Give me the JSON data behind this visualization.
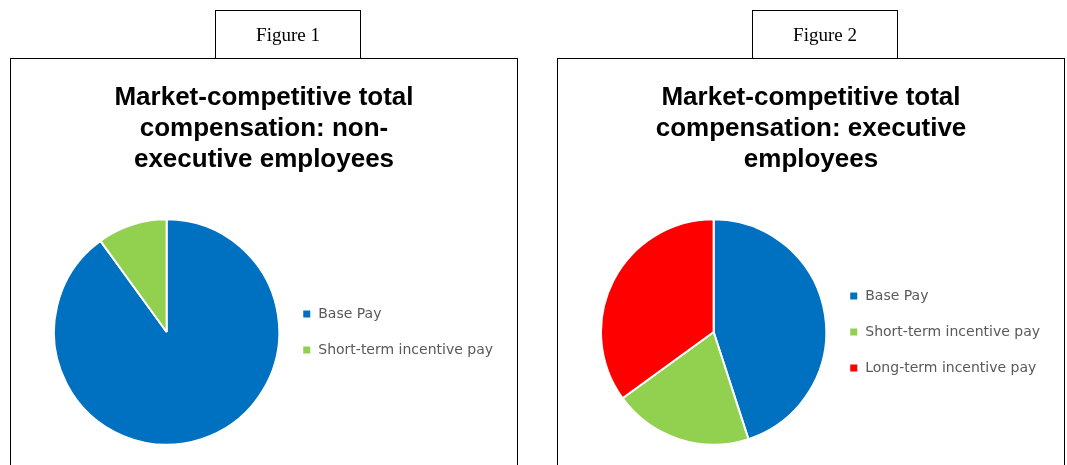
{
  "chart_data": [
    {
      "type": "pie",
      "title": "Market-competitive total compensation: non-executive employees",
      "annotations": [
        "Figure 1"
      ],
      "categories": [
        "Base Pay",
        "Short-term incentive pay"
      ],
      "values": [
        90,
        10
      ],
      "colors": [
        "#0070c0",
        "#92d050"
      ],
      "legend": "right"
    },
    {
      "type": "pie",
      "title": "Market-competitive total compensation: executive employees",
      "annotations": [
        "Figure 2"
      ],
      "categories": [
        "Base Pay",
        "Short-term incentive pay",
        "Long-term incentive pay"
      ],
      "values": [
        45,
        20,
        35
      ],
      "colors": [
        "#0070c0",
        "#92d050",
        "#ff0000"
      ],
      "legend": "right"
    }
  ]
}
